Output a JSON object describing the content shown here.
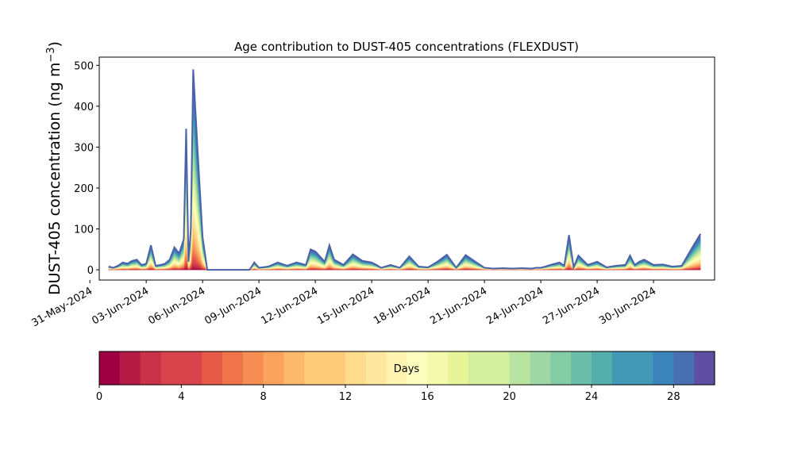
{
  "chart_data": {
    "type": "area",
    "title": "Age contribution to DUST-405 concentrations (FLEXDUST)",
    "ylabel": "DUST-405 concentration (ng m",
    "ylabel_sup": "−3",
    "ylabel_close": ")",
    "xlabel": "",
    "ylim": [
      -25,
      520
    ],
    "xlim": [
      "2024-05-31T12:00",
      "2024-07-03T06:00"
    ],
    "x_ticks": [
      "2024-05-31",
      "2024-06-03",
      "2024-06-06",
      "2024-06-09",
      "2024-06-12",
      "2024-06-15",
      "2024-06-18",
      "2024-06-21",
      "2024-06-24",
      "2024-06-27",
      "2024-06-30"
    ],
    "x_tick_labels": [
      "31-May-2024",
      "03-Jun-2024",
      "06-Jun-2024",
      "09-Jun-2024",
      "12-Jun-2024",
      "15-Jun-2024",
      "18-Jun-2024",
      "21-Jun-2024",
      "24-Jun-2024",
      "27-Jun-2024",
      "30-Jun-2024"
    ],
    "y_ticks": [
      0,
      100,
      200,
      300,
      400,
      500
    ],
    "y_tick_labels": [
      "0",
      "100",
      "200",
      "300",
      "400",
      "500"
    ],
    "grid": false,
    "total_series": {
      "x": [
        "2024-06-01T00:00",
        "2024-06-01T06:00",
        "2024-06-01T12:00",
        "2024-06-01T18:00",
        "2024-06-02T00:00",
        "2024-06-02T06:00",
        "2024-06-02T12:00",
        "2024-06-02T18:00",
        "2024-06-03T00:00",
        "2024-06-03T06:00",
        "2024-06-03T12:00",
        "2024-06-03T18:00",
        "2024-06-04T00:00",
        "2024-06-04T06:00",
        "2024-06-04T12:00",
        "2024-06-04T18:00",
        "2024-06-05T00:00",
        "2024-06-05T03:00",
        "2024-06-05T06:00",
        "2024-06-05T09:00",
        "2024-06-05T12:00",
        "2024-06-05T18:00",
        "2024-06-06T00:00",
        "2024-06-06T06:00",
        "2024-06-06T12:00",
        "2024-06-06T18:00",
        "2024-06-07T00:00",
        "2024-06-08T12:00",
        "2024-06-08T18:00",
        "2024-06-09T00:00",
        "2024-06-09T12:00",
        "2024-06-10T00:00",
        "2024-06-10T12:00",
        "2024-06-11T00:00",
        "2024-06-11T12:00",
        "2024-06-11T18:00",
        "2024-06-12T00:00",
        "2024-06-12T12:00",
        "2024-06-12T18:00",
        "2024-06-13T00:00",
        "2024-06-13T12:00",
        "2024-06-14T00:00",
        "2024-06-14T12:00",
        "2024-06-15T00:00",
        "2024-06-15T06:00",
        "2024-06-15T12:00",
        "2024-06-16T00:00",
        "2024-06-16T12:00",
        "2024-06-17T00:00",
        "2024-06-17T12:00",
        "2024-06-18T00:00",
        "2024-06-18T12:00",
        "2024-06-19T00:00",
        "2024-06-19T12:00",
        "2024-06-20T00:00",
        "2024-06-21T00:00",
        "2024-06-21T12:00",
        "2024-06-22T00:00",
        "2024-06-22T12:00",
        "2024-06-23T00:00",
        "2024-06-23T12:00",
        "2024-06-23T18:00",
        "2024-06-24T00:00",
        "2024-06-24T06:00",
        "2024-06-24T12:00",
        "2024-06-25T00:00",
        "2024-06-25T06:00",
        "2024-06-25T12:00",
        "2024-06-25T18:00",
        "2024-06-26T00:00",
        "2024-06-26T12:00",
        "2024-06-27T00:00",
        "2024-06-27T12:00",
        "2024-06-28T00:00",
        "2024-06-28T12:00",
        "2024-06-28T18:00",
        "2024-06-29T00:00",
        "2024-06-29T06:00",
        "2024-06-29T12:00",
        "2024-06-30T00:00",
        "2024-06-30T12:00",
        "2024-07-01T00:00",
        "2024-07-01T12:00",
        "2024-07-02T00:00",
        "2024-07-02T12:00"
      ],
      "values": [
        8,
        5,
        10,
        18,
        15,
        22,
        25,
        12,
        15,
        60,
        10,
        12,
        15,
        25,
        55,
        40,
        75,
        345,
        20,
        100,
        490,
        280,
        80,
        0,
        0,
        0,
        0,
        0,
        18,
        5,
        8,
        18,
        10,
        18,
        12,
        50,
        45,
        20,
        60,
        25,
        12,
        38,
        22,
        18,
        12,
        5,
        12,
        5,
        33,
        8,
        6,
        20,
        37,
        5,
        36,
        5,
        3,
        4,
        3,
        4,
        3,
        5,
        5,
        8,
        12,
        18,
        10,
        85,
        6,
        35,
        12,
        20,
        6,
        10,
        12,
        35,
        12,
        20,
        25,
        12,
        13,
        8,
        10,
        50,
        88
      ]
    },
    "colorbar": {
      "label": "Days",
      "min": 0,
      "max": 30,
      "bins": 30,
      "ticks": [
        "0",
        "4",
        "8",
        "12",
        "16",
        "20",
        "24",
        "28"
      ],
      "tick_values": [
        0,
        4,
        8,
        12,
        16,
        20,
        24,
        28
      ],
      "colormap": "Spectral",
      "colors": [
        "#9e0142",
        "#b41c45",
        "#c93248",
        "#d8434c",
        "#e55a47",
        "#f0734a",
        "#f78d53",
        "#fba35e",
        "#fdb96b",
        "#fecb7b",
        "#fedb8d",
        "#fee8a0",
        "#fff3b2",
        "#fdfec0",
        "#f3faad",
        "#e6f598",
        "#d2ee9e",
        "#b9e3a1",
        "#9ed6a4",
        "#83cca4",
        "#69bda9",
        "#54aeac",
        "#4199b5",
        "#3b84bb",
        "#4a70b4",
        "#5e4fa2"
      ]
    }
  }
}
